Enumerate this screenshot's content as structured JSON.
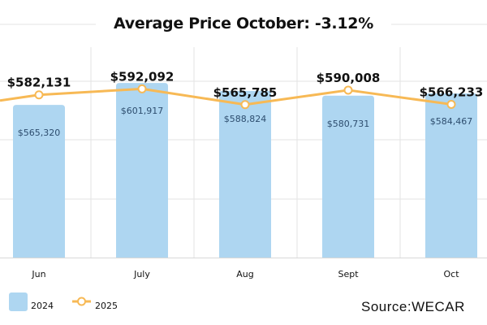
{
  "chart_data": {
    "type": "bar",
    "title": "Average Price October: -3.12%",
    "categories": [
      "Jun",
      "July",
      "Aug",
      "Sept",
      "Oct"
    ],
    "series": [
      {
        "name": "2024",
        "type": "bar",
        "values": [
          565320,
          601917,
          588824,
          580731,
          584467
        ],
        "labels": [
          "$565,320",
          "$601,917",
          "$588,824",
          "$580,731",
          "$584,467"
        ],
        "color": "#aed6f1"
      },
      {
        "name": "2025",
        "type": "line",
        "values": [
          582131,
          592092,
          565785,
          590008,
          566233
        ],
        "labels": [
          "$582,131",
          "$592,092",
          "$565,785",
          "$590,008",
          "$566,233"
        ],
        "color": "#f7b955"
      }
    ],
    "ylim": [
      310000,
      700000
    ],
    "grid": true,
    "legend": "bottom-left",
    "source": "Source:WECAR"
  }
}
